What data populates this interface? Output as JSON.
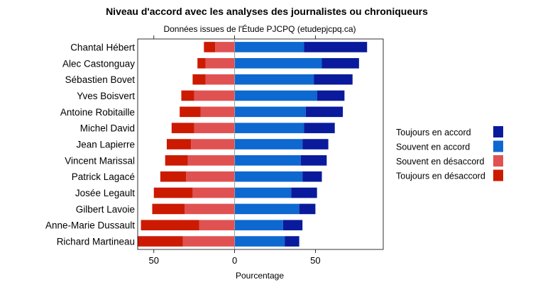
{
  "chart_data": {
    "type": "bar",
    "orientation": "horizontal",
    "stacked": "diverging",
    "title": "Niveau d'accord avec les analyses des journalistes ou chroniqueurs",
    "subtitle": "Données issues de l'Étude PJCPQ (etudepjcpq.ca)",
    "xlabel": "Pourcentage",
    "ylabel": "",
    "xlim": [
      -60,
      92
    ],
    "xticks": [
      {
        "value": -50,
        "label": "50"
      },
      {
        "value": 0,
        "label": "0"
      },
      {
        "value": 50,
        "label": "50"
      }
    ],
    "categories": [
      "Chantal Hébert",
      "Alec Castonguay",
      "Sébastien Bovet",
      "Yves Boisvert",
      "Antoine Robitaille",
      "Michel David",
      "Jean Lapierre",
      "Vincent Marissal",
      "Patrick Lagacé",
      "Josée Legault",
      "Gilbert Lavoie",
      "Anne-Marie Dussault",
      "Richard Martineau"
    ],
    "series": [
      {
        "name": "Toujours en accord",
        "color": "#0a1a9c",
        "side": "positive",
        "values": [
          39,
          23,
          24,
          17,
          23,
          19,
          16,
          16,
          12,
          16,
          10,
          12,
          9
        ]
      },
      {
        "name": "Souvent en accord",
        "color": "#0d68d0",
        "side": "positive",
        "values": [
          43,
          54,
          49,
          51,
          44,
          43,
          42,
          41,
          42,
          35,
          40,
          30,
          31
        ]
      },
      {
        "name": "Souvent en désaccord",
        "color": "#e05252",
        "side": "negative",
        "values": [
          12,
          18,
          18,
          25,
          21,
          25,
          27,
          29,
          30,
          26,
          31,
          22,
          32
        ]
      },
      {
        "name": "Toujours en désaccord",
        "color": "#cc1a00",
        "side": "negative",
        "values": [
          7,
          5,
          8,
          8,
          13,
          14,
          15,
          14,
          16,
          24,
          20,
          36,
          28
        ]
      }
    ],
    "legend_position": "right",
    "grid": false
  }
}
